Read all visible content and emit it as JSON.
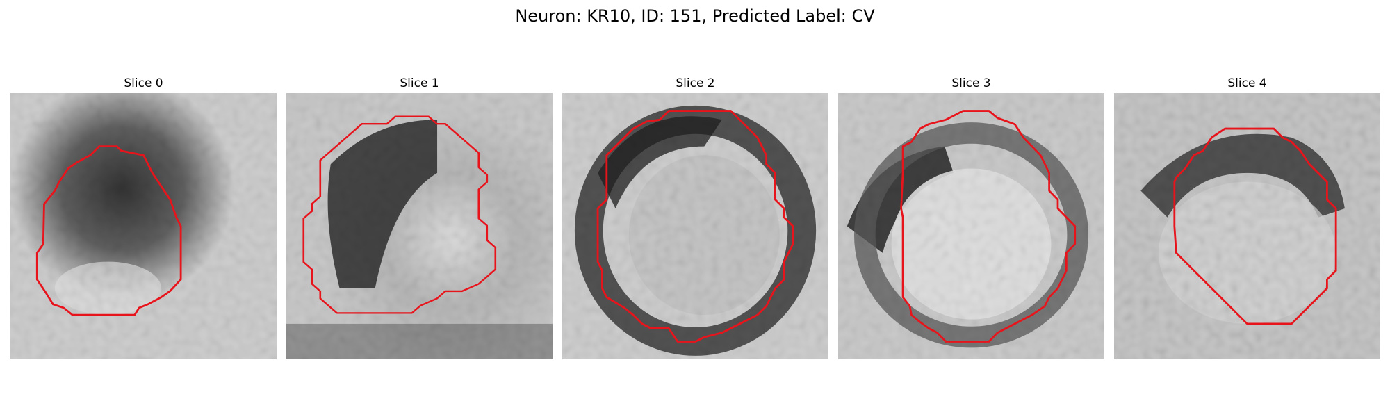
{
  "figure": {
    "title": "Neuron: KR10, ID: 151, Predicted Label: CV"
  },
  "colors": {
    "contour": "#e8141c",
    "background": "#ffffff"
  },
  "panels": [
    {
      "title": "Slice 0"
    },
    {
      "title": "Slice 1"
    },
    {
      "title": "Slice 2"
    },
    {
      "title": "Slice 3"
    },
    {
      "title": "Slice 4"
    }
  ]
}
